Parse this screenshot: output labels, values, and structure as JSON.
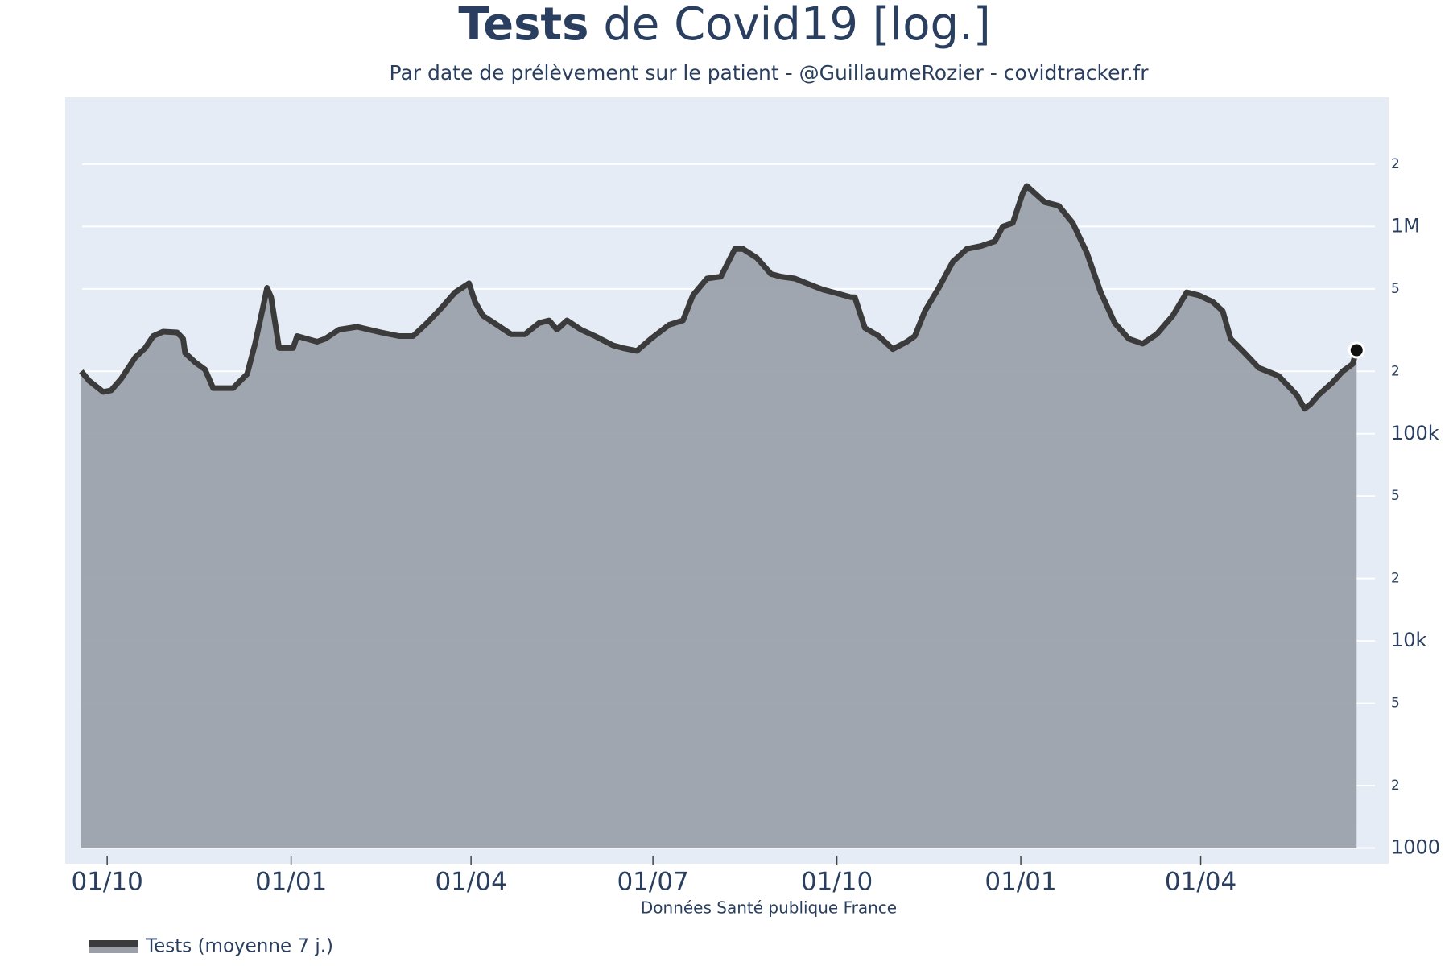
{
  "chart_data": {
    "type": "line",
    "title_bold": "Tests",
    "title": "de Covid19 [log.]",
    "subtitle": "Par date de prélèvement sur le patient - @GuillaumeRozier - covidtracker.fr",
    "xlabel": "Données Santé publique France",
    "x": [
      -13,
      -9,
      -2,
      2,
      7,
      14,
      19,
      23,
      28,
      35,
      38,
      39,
      44,
      49,
      53,
      60,
      63,
      70,
      74,
      78,
      80,
      82,
      86,
      93,
      95,
      105,
      109,
      116,
      125,
      137,
      146,
      153,
      160,
      167,
      174,
      181,
      184,
      188,
      195,
      202,
      209,
      216,
      221,
      225,
      230,
      237,
      244,
      253,
      258,
      265,
      272,
      281,
      288,
      293,
      300,
      307,
      314,
      318,
      325,
      332,
      337,
      344,
      351,
      358,
      365,
      372,
      374,
      379,
      386,
      393,
      400,
      404,
      409,
      416,
      423,
      430,
      437,
      444,
      448,
      453,
      458,
      460,
      465,
      469,
      476,
      483,
      490,
      497,
      504,
      511,
      518,
      525,
      533,
      540,
      546,
      553,
      558,
      562,
      569,
      576,
      586,
      595,
      599,
      602,
      606,
      613,
      618,
      623,
      625
    ],
    "series": [
      {
        "name": "Tests (moyenne 7 j.)",
        "color": "#3b3b3b",
        "fill": "#9a9fa8",
        "values": [
          200000,
          180000,
          159000,
          162000,
          184000,
          233000,
          259000,
          296000,
          311000,
          308000,
          287000,
          245000,
          221000,
          204000,
          166000,
          166000,
          166000,
          194000,
          272000,
          411000,
          506000,
          456000,
          259000,
          259000,
          296000,
          278000,
          287000,
          318000,
          328000,
          308000,
          296000,
          296000,
          342000,
          403000,
          481000,
          532000,
          433000,
          371000,
          335000,
          302000,
          302000,
          342000,
          352000,
          318000,
          352000,
          318000,
          296000,
          267000,
          259000,
          251000,
          287000,
          335000,
          352000,
          466000,
          561000,
          573000,
          780000,
          780000,
          705000,
          591000,
          573000,
          561000,
          527000,
          496000,
          476000,
          456000,
          456000,
          324000,
          296000,
          256000,
          278000,
          296000,
          391000,
          506000,
          676000,
          780000,
          805000,
          848000,
          1000000,
          1040000,
          1450000,
          1570000,
          1420000,
          1310000,
          1260000,
          1040000,
          749000,
          481000,
          342000,
          287000,
          272000,
          302000,
          371000,
          481000,
          466000,
          433000,
          391000,
          287000,
          245000,
          208000,
          190000,
          154000,
          132000,
          139000,
          154000,
          177000,
          200000,
          217000,
          253000
        ]
      }
    ],
    "xlim": [
      -21,
      641
    ],
    "xticks": [
      {
        "value": 0,
        "label": "01/10"
      },
      {
        "value": 92,
        "label": "01/01"
      },
      {
        "value": 182,
        "label": "01/04"
      },
      {
        "value": 273,
        "label": "01/07"
      },
      {
        "value": 365,
        "label": "01/10"
      },
      {
        "value": 457,
        "label": "01/01"
      },
      {
        "value": 547,
        "label": "01/04"
      }
    ],
    "ylim": [
      840,
      4200000
    ],
    "log_y": true,
    "yticks": [
      1000,
      {
        "value": 2000,
        "label": "2"
      },
      {
        "value": 5000,
        "label": "5"
      },
      {
        "value": 10000,
        "label": "10k"
      },
      {
        "value": 20000,
        "label": "2"
      },
      {
        "value": 50000,
        "label": "5"
      },
      {
        "value": 100000,
        "label": "100k"
      },
      {
        "value": 200000,
        "label": "2"
      },
      {
        "value": 500000,
        "label": "5"
      },
      {
        "value": 1000000,
        "label": "1M"
      },
      {
        "value": 2000000,
        "label": "2"
      }
    ],
    "grid": true,
    "legend": "bottom-left"
  }
}
